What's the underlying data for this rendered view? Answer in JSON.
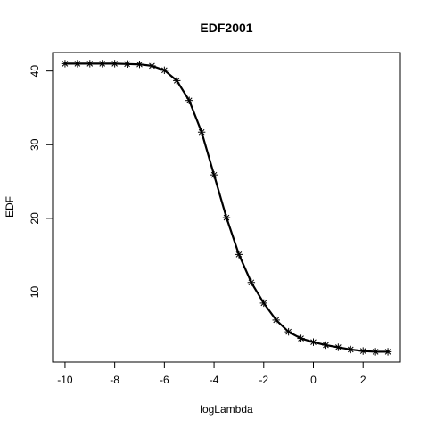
{
  "chart_data": {
    "type": "line",
    "title": "EDF2001",
    "xlabel": "logLambda",
    "ylabel": "EDF",
    "xlim": [
      -10.5,
      3.5
    ],
    "ylim": [
      0.5,
      42.5
    ],
    "x_ticks": [
      -10,
      -8,
      -6,
      -4,
      -2,
      0,
      2
    ],
    "y_ticks": [
      10,
      20,
      30,
      40
    ],
    "x_tick_labels": [
      "-10",
      "-8",
      "-6",
      "-4",
      "-2",
      "0",
      "2"
    ],
    "y_tick_labels": [
      "10",
      "20",
      "30",
      "40"
    ],
    "grid": false,
    "marker": "asterisk",
    "line_color": "#000000",
    "series": [
      {
        "x": [
          -10,
          -9.5,
          -9,
          -8.5,
          -8,
          -7.5,
          -7,
          -6.5,
          -6,
          -5.5,
          -5,
          -4.5,
          -4,
          -3.5,
          -3,
          -2.5,
          -2,
          -1.5,
          -1,
          -0.5,
          0,
          0.5,
          1,
          1.5,
          2,
          2.5,
          3
        ],
        "values": [
          41.0,
          41.0,
          41.0,
          41.0,
          41.0,
          40.95,
          40.9,
          40.7,
          40.1,
          38.7,
          36.0,
          31.7,
          25.9,
          20.1,
          15.1,
          11.3,
          8.5,
          6.2,
          4.6,
          3.7,
          3.2,
          2.8,
          2.5,
          2.2,
          2.0,
          1.9,
          1.9
        ]
      }
    ]
  }
}
